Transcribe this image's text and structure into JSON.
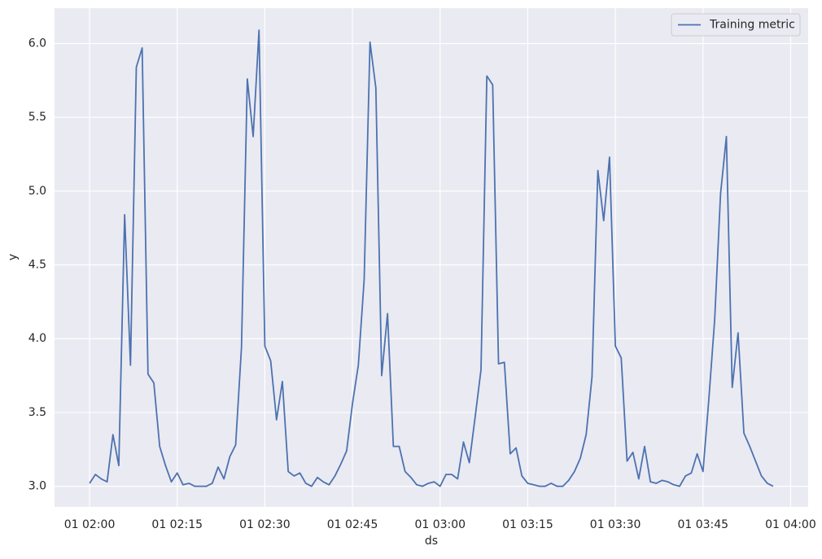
{
  "chart_data": {
    "type": "line",
    "xlabel": "ds",
    "ylabel": "y",
    "x": [
      "01 02:00",
      "01 02:01",
      "01 02:02",
      "01 02:03",
      "01 02:04",
      "01 02:05",
      "01 02:06",
      "01 02:07",
      "01 02:08",
      "01 02:09",
      "01 02:10",
      "01 02:11",
      "01 02:12",
      "01 02:13",
      "01 02:14",
      "01 02:15",
      "01 02:16",
      "01 02:17",
      "01 02:18",
      "01 02:19",
      "01 02:20",
      "01 02:21",
      "01 02:22",
      "01 02:23",
      "01 02:24",
      "01 02:25",
      "01 02:26",
      "01 02:27",
      "01 02:28",
      "01 02:29",
      "01 02:30",
      "01 02:31",
      "01 02:32",
      "01 02:33",
      "01 02:34",
      "01 02:35",
      "01 02:36",
      "01 02:37",
      "01 02:38",
      "01 02:39",
      "01 02:40",
      "01 02:41",
      "01 02:42",
      "01 02:43",
      "01 02:44",
      "01 02:45",
      "01 02:46",
      "01 02:47",
      "01 02:48",
      "01 02:49",
      "01 02:50",
      "01 02:51",
      "01 02:52",
      "01 02:53",
      "01 02:54",
      "01 02:55",
      "01 02:56",
      "01 02:57",
      "01 02:58",
      "01 02:59",
      "01 03:00",
      "01 03:01",
      "01 03:02",
      "01 03:03",
      "01 03:04",
      "01 03:05",
      "01 03:06",
      "01 03:07",
      "01 03:08",
      "01 03:09",
      "01 03:10",
      "01 03:11",
      "01 03:12",
      "01 03:13",
      "01 03:14",
      "01 03:15",
      "01 03:16",
      "01 03:17",
      "01 03:18",
      "01 03:19",
      "01 03:20",
      "01 03:21",
      "01 03:22",
      "01 03:23",
      "01 03:24",
      "01 03:25",
      "01 03:26",
      "01 03:27",
      "01 03:28",
      "01 03:29",
      "01 03:30",
      "01 03:31",
      "01 03:32",
      "01 03:33",
      "01 03:34",
      "01 03:35",
      "01 03:36",
      "01 03:37",
      "01 03:38",
      "01 03:39",
      "01 03:40",
      "01 03:41",
      "01 03:42",
      "01 03:43",
      "01 03:44",
      "01 03:45",
      "01 03:46",
      "01 03:47",
      "01 03:48",
      "01 03:49",
      "01 03:50",
      "01 03:51",
      "01 03:52",
      "01 03:53",
      "01 03:54",
      "01 03:55",
      "01 03:56",
      "01 03:57"
    ],
    "series": [
      {
        "name": "Training metric",
        "color": "#4c72b0",
        "values": [
          3.02,
          3.08,
          3.05,
          3.03,
          3.35,
          3.14,
          4.84,
          3.82,
          5.84,
          5.97,
          3.76,
          3.7,
          3.27,
          3.14,
          3.03,
          3.09,
          3.01,
          3.02,
          3.0,
          3.0,
          3.0,
          3.02,
          3.13,
          3.05,
          3.2,
          3.28,
          3.94,
          5.76,
          5.37,
          6.09,
          3.95,
          3.85,
          3.45,
          3.71,
          3.1,
          3.07,
          3.09,
          3.02,
          3.0,
          3.06,
          3.03,
          3.01,
          3.07,
          3.15,
          3.24,
          3.56,
          3.82,
          4.4,
          6.01,
          5.7,
          3.75,
          4.17,
          3.27,
          3.27,
          3.1,
          3.06,
          3.01,
          3.0,
          3.02,
          3.03,
          3.0,
          3.08,
          3.08,
          3.05,
          3.3,
          3.16,
          3.47,
          3.79,
          5.78,
          5.72,
          3.83,
          3.84,
          3.22,
          3.26,
          3.07,
          3.02,
          3.01,
          3.0,
          3.0,
          3.02,
          3.0,
          3.0,
          3.04,
          3.1,
          3.19,
          3.35,
          3.74,
          5.14,
          4.8,
          5.23,
          3.95,
          3.87,
          3.17,
          3.23,
          3.05,
          3.27,
          3.03,
          3.02,
          3.04,
          3.03,
          3.01,
          3.0,
          3.07,
          3.09,
          3.22,
          3.1,
          3.59,
          4.13,
          4.98,
          5.37,
          3.67,
          4.04,
          3.36,
          3.27,
          3.17,
          3.07,
          3.02,
          3.0
        ]
      }
    ],
    "xlim": [
      "01 01:54",
      "01 04:03"
    ],
    "xticks": [
      "01 02:00",
      "01 02:15",
      "01 02:30",
      "01 02:45",
      "01 03:00",
      "01 03:15",
      "01 03:30",
      "01 03:45",
      "01 04:00"
    ],
    "ylim": [
      2.86,
      6.24
    ],
    "yticks": [
      {
        "value": 3,
        "label": "3.0"
      },
      {
        "value": 3.5,
        "label": "3.5"
      },
      {
        "value": 4,
        "label": "4.0"
      },
      {
        "value": 4.5,
        "label": "4.5"
      },
      {
        "value": 5,
        "label": "5.0"
      },
      {
        "value": 5.5,
        "label": "5.5"
      },
      {
        "value": 6,
        "label": "6.0"
      }
    ],
    "grid": true,
    "legend": "upper right"
  }
}
